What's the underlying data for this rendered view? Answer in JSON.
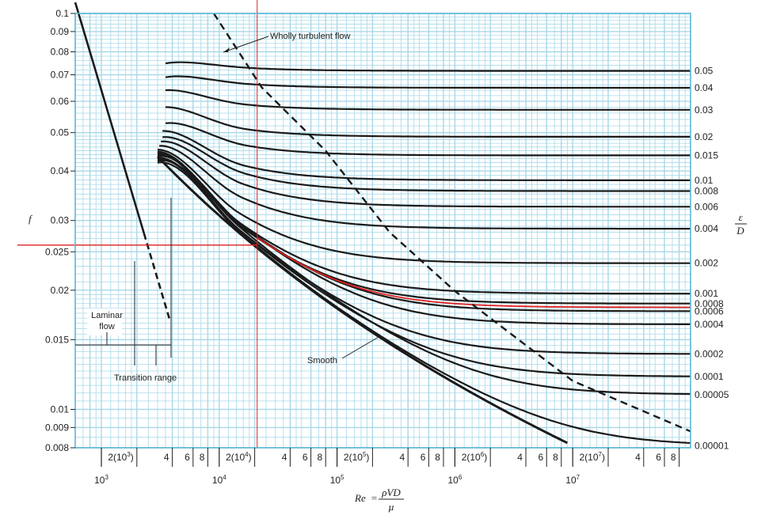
{
  "chart_data": {
    "type": "line",
    "title": "",
    "xlabel": "Re = ρVD/μ",
    "xlabel_parts": {
      "lhs": "Re",
      "eq": "=",
      "num": "ρVD",
      "den": "μ"
    },
    "ylabel": "f",
    "y2label": {
      "num": "ε",
      "den": "D"
    },
    "xscale": "log",
    "yscale": "log",
    "xlim": [
      600,
      100000000
    ],
    "ylim": [
      0.008,
      0.1
    ],
    "grid": true,
    "y_ticks": [
      {
        "v": 0.1,
        "label": "0.1"
      },
      {
        "v": 0.09,
        "label": "0.09"
      },
      {
        "v": 0.08,
        "label": "0.08"
      },
      {
        "v": 0.07,
        "label": "0.07"
      },
      {
        "v": 0.06,
        "label": "0.06"
      },
      {
        "v": 0.05,
        "label": "0.05"
      },
      {
        "v": 0.04,
        "label": "0.04"
      },
      {
        "v": 0.03,
        "label": "0.03"
      },
      {
        "v": 0.025,
        "label": "0.025"
      },
      {
        "v": 0.02,
        "label": "0.02"
      },
      {
        "v": 0.015,
        "label": "0.015"
      },
      {
        "v": 0.01,
        "label": "0.01"
      },
      {
        "v": 0.009,
        "label": "0.009"
      },
      {
        "v": 0.008,
        "label": "0.008"
      }
    ],
    "x_ticks_upper": [
      {
        "v": 2000,
        "base": "2(10",
        "exp": "3",
        "tail": ")"
      },
      {
        "v": 4000,
        "base": "4",
        "exp": "",
        "tail": ""
      },
      {
        "v": 6000,
        "base": "6",
        "exp": "",
        "tail": ""
      },
      {
        "v": 8000,
        "base": "8",
        "exp": "",
        "tail": ""
      },
      {
        "v": 20000,
        "base": "2(10",
        "exp": "4",
        "tail": ")"
      },
      {
        "v": 40000,
        "base": "4",
        "exp": "",
        "tail": ""
      },
      {
        "v": 60000,
        "base": "6",
        "exp": "",
        "tail": ""
      },
      {
        "v": 80000,
        "base": "8",
        "exp": "",
        "tail": ""
      },
      {
        "v": 200000,
        "base": "2(10",
        "exp": "5",
        "tail": ")"
      },
      {
        "v": 400000,
        "base": "4",
        "exp": "",
        "tail": ""
      },
      {
        "v": 600000,
        "base": "6",
        "exp": "",
        "tail": ""
      },
      {
        "v": 800000,
        "base": "8",
        "exp": "",
        "tail": ""
      },
      {
        "v": 2000000,
        "base": "2(10",
        "exp": "6",
        "tail": ")"
      },
      {
        "v": 4000000,
        "base": "4",
        "exp": "",
        "tail": ""
      },
      {
        "v": 6000000,
        "base": "6",
        "exp": "",
        "tail": ""
      },
      {
        "v": 8000000,
        "base": "8",
        "exp": "",
        "tail": ""
      },
      {
        "v": 20000000,
        "base": "2(10",
        "exp": "7",
        "tail": ")"
      },
      {
        "v": 40000000,
        "base": "4",
        "exp": "",
        "tail": ""
      },
      {
        "v": 60000000,
        "base": "6",
        "exp": "",
        "tail": ""
      },
      {
        "v": 80000000,
        "base": "8",
        "exp": "",
        "tail": ""
      }
    ],
    "x_ticks_lower": [
      {
        "v": 1000,
        "base": "10",
        "exp": "3"
      },
      {
        "v": 10000,
        "base": "10",
        "exp": "4"
      },
      {
        "v": 100000,
        "base": "10",
        "exp": "5"
      },
      {
        "v": 1000000,
        "base": "10",
        "exp": "6"
      },
      {
        "v": 10000000,
        "base": "10",
        "exp": "7"
      }
    ],
    "roughness": [
      {
        "label": "0.05",
        "value": 0.05,
        "f_inf": 0.0716,
        "start_re": 3500,
        "start_f": 0.0748
      },
      {
        "label": "0.04",
        "value": 0.04,
        "f_inf": 0.0649,
        "start_re": 3500,
        "start_f": 0.069
      },
      {
        "label": "0.03",
        "value": 0.03,
        "f_inf": 0.0571,
        "start_re": 3500,
        "start_f": 0.064
      },
      {
        "label": "0.02",
        "value": 0.02,
        "f_inf": 0.0488,
        "start_re": 3500,
        "start_f": 0.058
      },
      {
        "label": "0.015",
        "value": 0.015,
        "f_inf": 0.0438,
        "start_re": 3500,
        "start_f": 0.0528
      },
      {
        "label": "0.01",
        "value": 0.01,
        "f_inf": 0.0379,
        "start_re": 3300,
        "start_f": 0.0505
      },
      {
        "label": "0.008",
        "value": 0.008,
        "f_inf": 0.0356,
        "start_re": 3300,
        "start_f": 0.0487
      },
      {
        "label": "0.006",
        "value": 0.006,
        "f_inf": 0.0325,
        "start_re": 3200,
        "start_f": 0.0475
      },
      {
        "label": "0.004",
        "value": 0.004,
        "f_inf": 0.0286,
        "start_re": 3100,
        "start_f": 0.0463
      },
      {
        "label": "0.002",
        "value": 0.002,
        "f_inf": 0.0234,
        "start_re": 3000,
        "start_f": 0.0453
      },
      {
        "label": "0.001",
        "value": 0.001,
        "f_inf": 0.0196,
        "start_re": 3000,
        "start_f": 0.0448
      },
      {
        "label": "0.0008",
        "value": 0.0008,
        "f_inf": 0.0185,
        "start_re": 3000,
        "start_f": 0.0444
      },
      {
        "label": "0.0006",
        "value": 0.0006,
        "f_inf": 0.0177,
        "start_re": 3000,
        "start_f": 0.044
      },
      {
        "label": "0.0004",
        "value": 0.0004,
        "f_inf": 0.0164,
        "start_re": 3000,
        "start_f": 0.0436
      },
      {
        "label": "0.0002",
        "value": 0.0002,
        "f_inf": 0.0138,
        "start_re": 3000,
        "start_f": 0.0432
      },
      {
        "label": "0.0001",
        "value": 0.0001,
        "f_inf": 0.0121,
        "start_re": 3000,
        "start_f": 0.0428
      },
      {
        "label": "0.00005",
        "value": 5e-05,
        "f_inf": 0.0109,
        "start_re": 3000,
        "start_f": 0.0424
      },
      {
        "label": "0.00001",
        "value": 1e-05,
        "f_inf": 0.0081,
        "start_re": 3000,
        "start_f": 0.042
      }
    ],
    "highlighted_curve": {
      "value": 0.0007,
      "f_inf": 0.0181,
      "color": "#e02020"
    },
    "smooth_curve": {
      "from_re": 3000,
      "to_re": 9000000
    },
    "laminar": {
      "from_re": 600,
      "to_re": 3800,
      "solid_to_re": 2300
    },
    "wholly_turbulent": {
      "points": [
        [
          9000,
          0.1
        ],
        [
          23000,
          0.065
        ],
        [
          80000,
          0.045
        ],
        [
          280000,
          0.028
        ],
        [
          1000000,
          0.0199
        ],
        [
          3000000,
          0.0155
        ],
        [
          10000000,
          0.0118
        ],
        [
          100000000,
          0.0088
        ]
      ]
    },
    "reference_lines": {
      "re": 21000,
      "f": 0.026,
      "color": "#e02020"
    },
    "annotations": {
      "wholly_turbulent": "Wholly turbulent flow",
      "smooth": "Smooth",
      "laminar_line1": "Laminar",
      "laminar_line2": "flow",
      "transition": "Transition range"
    },
    "colors": {
      "grid": "#a8d8e8",
      "frame": "#5bb8d6",
      "curve": "#1a1a1a",
      "highlight": "#e02020"
    }
  }
}
